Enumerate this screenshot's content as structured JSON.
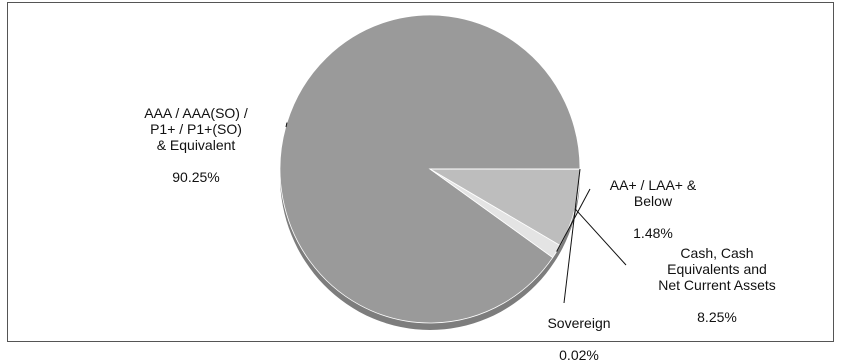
{
  "chart_data": {
    "type": "pie",
    "title": "",
    "slices": [
      {
        "label": "AAA / AAA(SO) /\nP1+ / P1+(SO)\n& Equivalent",
        "value": 90.25,
        "value_label": "90.25%",
        "color": "#9a9a9a"
      },
      {
        "label": "AA+ / LAA+ &\nBelow",
        "value": 1.48,
        "value_label": "1.48%",
        "color": "#e4e4e4"
      },
      {
        "label": "Cash, Cash\nEquivalents and\nNet Current Assets",
        "value": 8.25,
        "value_label": "8.25%",
        "color": "#bdbdbd"
      },
      {
        "label": "Sovereign",
        "value": 0.02,
        "value_label": "0.02%",
        "color": "#6e6e6e"
      }
    ],
    "start_direction": "right",
    "order": "counter-clockwise",
    "legend": "none",
    "style": "3d-tilt"
  }
}
